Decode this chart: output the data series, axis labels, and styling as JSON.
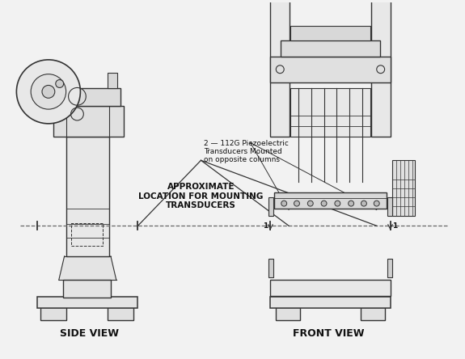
{
  "bg_color": "#f0f0f0",
  "line_color": "#333333",
  "text_color": "#111111",
  "side_view_label": "SIDE VIEW",
  "front_view_label": "FRONT VIEW",
  "approx_label": "APPROXIMATE\nLOCATION FOR MOUNTING\nTRANSDUCERS",
  "transducer_label": "2 — 112G Piezoelectric\nTransducers Mounted\non opposite columns",
  "fig_width": 5.75,
  "fig_height": 4.44,
  "dpi": 100
}
